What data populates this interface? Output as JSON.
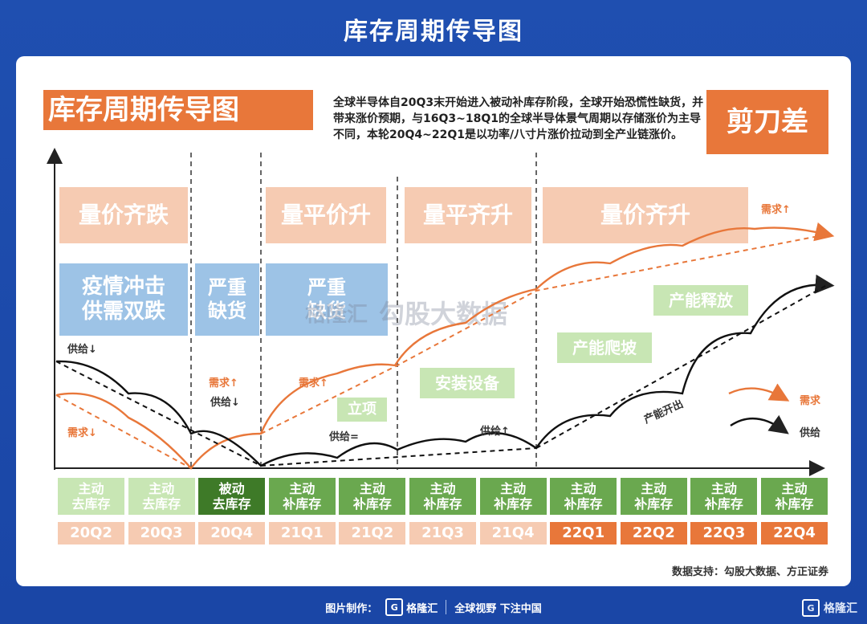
{
  "page_title": "库存周期传导图",
  "diagram": {
    "title": "库存周期传导图",
    "scissor_label": "剪刀差",
    "description": "全球半导体自20Q3末开始进入被动补库存阶段，全球开始恐慌性缺货，并带来涨价预期，与16Q3~18Q1的全球半导体景气周期以存储涨价为主导不同，本轮20Q4~22Q1是以功率/八寸片涨价拉动到全产业链涨价。",
    "phases": [
      "量价齐跌",
      "量平价升",
      "量平齐升",
      "量价齐升"
    ],
    "events": [
      "疫情冲击\n供需双跌",
      "严重\n缺货",
      "严重\n缺货"
    ],
    "drivers": [
      "立项",
      "安装设备",
      "产能爬坡",
      "产能释放"
    ],
    "curve_labels": {
      "supply_down_1": "供给↓",
      "demand_down": "需求↓",
      "demand_up_1": "需求↑",
      "supply_down_2": "供给↓",
      "demand_up_2": "需求↑",
      "supply_eq": "供给=",
      "supply_up": "供给↑",
      "demand_up_3": "需求↑",
      "capacity_out": "产能开出"
    },
    "legend": [
      {
        "name": "需求",
        "color": "#e8773a"
      },
      {
        "name": "供给",
        "color": "#111111"
      }
    ],
    "stages": [
      "主动\n去库存",
      "主动\n去库存",
      "被动\n去库存",
      "主动\n补库存",
      "主动\n补库存",
      "主动\n补库存",
      "主动\n补库存",
      "主动\n补库存",
      "主动\n补库存",
      "主动\n补库存",
      "主动\n补库存"
    ],
    "quarters": [
      "20Q2",
      "20Q3",
      "20Q4",
      "21Q1",
      "21Q2",
      "21Q3",
      "21Q4",
      "22Q1",
      "22Q2",
      "22Q3",
      "22Q4"
    ],
    "watermark": "勾股大数据",
    "watermark_brand": "格隆汇",
    "source": "数据支持：勾股大数据、方正证券"
  },
  "footer": {
    "made_by": "图片制作：",
    "brand": "格隆汇",
    "slogan": "全球视野 下注中国"
  },
  "corner_brand": "格隆汇",
  "colors": {
    "background": "#1f4fb0",
    "orange": "#e8773a",
    "peach": "#f6cbb2",
    "blue": "#9dc3e6",
    "light_green": "#c8e6b4",
    "green": "#6aa84f",
    "dark_green": "#3e7a28"
  }
}
